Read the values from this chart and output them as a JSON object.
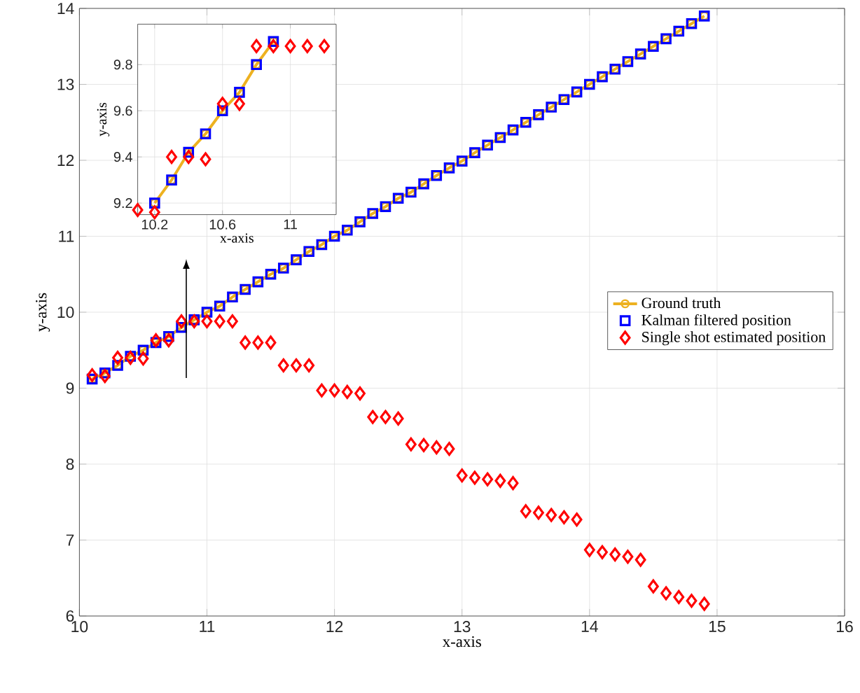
{
  "chart_data": [
    {
      "type": "scatter",
      "xlabel": "x-axis",
      "ylabel": "y-axis",
      "xlim": [
        10,
        16
      ],
      "ylim": [
        6,
        14
      ],
      "xticks": [
        10,
        11,
        12,
        13,
        14,
        15,
        16
      ],
      "yticks": [
        6,
        7,
        8,
        9,
        10,
        11,
        12,
        13,
        14
      ],
      "grid": true,
      "legend": "right",
      "series": [
        {
          "name": "Ground truth",
          "type": "line",
          "marker": "circle",
          "color": "#edb120",
          "x": [
            10.1,
            10.2,
            10.3,
            10.4,
            10.5,
            10.6,
            10.7,
            10.8,
            10.9,
            11.0,
            11.1,
            11.2,
            11.3,
            11.4,
            11.5,
            11.6,
            11.7,
            11.8,
            11.9,
            12.0,
            12.1,
            12.2,
            12.3,
            12.4,
            12.5,
            12.6,
            12.7,
            12.8,
            12.9,
            13.0,
            13.1,
            13.2,
            13.3,
            13.4,
            13.5,
            13.6,
            13.7,
            13.8,
            13.9,
            14.0,
            14.1,
            14.2,
            14.3,
            14.4,
            14.5,
            14.6,
            14.7,
            14.8,
            14.9
          ],
          "values": [
            9.12,
            9.2,
            9.3,
            9.42,
            9.5,
            9.6,
            9.68,
            9.8,
            9.9,
            10.0,
            10.08,
            10.2,
            10.3,
            10.4,
            10.5,
            10.58,
            10.69,
            10.8,
            10.89,
            11.0,
            11.08,
            11.19,
            11.3,
            11.39,
            11.5,
            11.58,
            11.69,
            11.8,
            11.9,
            11.99,
            12.1,
            12.2,
            12.3,
            12.4,
            12.5,
            12.6,
            12.7,
            12.8,
            12.9,
            13.0,
            13.1,
            13.2,
            13.3,
            13.4,
            13.5,
            13.6,
            13.7,
            13.8,
            13.9
          ]
        },
        {
          "name": "Kalman filtered position",
          "marker": "square",
          "color": "#0000ff",
          "x": [
            10.1,
            10.2,
            10.3,
            10.4,
            10.5,
            10.6,
            10.7,
            10.8,
            10.9,
            11.0,
            11.1,
            11.2,
            11.3,
            11.4,
            11.5,
            11.6,
            11.7,
            11.8,
            11.9,
            12.0,
            12.1,
            12.2,
            12.3,
            12.4,
            12.5,
            12.6,
            12.7,
            12.8,
            12.9,
            13.0,
            13.1,
            13.2,
            13.3,
            13.4,
            13.5,
            13.6,
            13.7,
            13.8,
            13.9,
            14.0,
            14.1,
            14.2,
            14.3,
            14.4,
            14.5,
            14.6,
            14.7,
            14.8,
            14.9
          ],
          "values": [
            9.12,
            9.2,
            9.3,
            9.42,
            9.5,
            9.6,
            9.68,
            9.8,
            9.9,
            10.0,
            10.08,
            10.2,
            10.3,
            10.4,
            10.5,
            10.58,
            10.69,
            10.8,
            10.89,
            11.0,
            11.08,
            11.19,
            11.3,
            11.39,
            11.5,
            11.58,
            11.69,
            11.8,
            11.9,
            11.99,
            12.1,
            12.2,
            12.3,
            12.4,
            12.5,
            12.6,
            12.7,
            12.8,
            12.9,
            13.0,
            13.1,
            13.2,
            13.3,
            13.4,
            13.5,
            13.6,
            13.7,
            13.8,
            13.9
          ]
        },
        {
          "name": "Single shot estimated position",
          "marker": "diamond",
          "color": "#ff0000",
          "x": [
            10.1,
            10.2,
            10.3,
            10.4,
            10.5,
            10.6,
            10.7,
            10.8,
            10.9,
            11.0,
            11.1,
            11.2,
            11.3,
            11.4,
            11.5,
            11.6,
            11.7,
            11.8,
            11.9,
            12.0,
            12.1,
            12.2,
            12.3,
            12.4,
            12.5,
            12.6,
            12.7,
            12.8,
            12.9,
            13.0,
            13.1,
            13.2,
            13.3,
            13.4,
            13.5,
            13.6,
            13.7,
            13.8,
            13.9,
            14.0,
            14.1,
            14.2,
            14.3,
            14.4,
            14.5,
            14.6,
            14.7,
            14.8,
            14.9
          ],
          "values": [
            9.17,
            9.16,
            9.4,
            9.4,
            9.39,
            9.63,
            9.63,
            9.88,
            9.88,
            9.88,
            9.88,
            9.88,
            9.6,
            9.6,
            9.6,
            9.3,
            9.3,
            9.3,
            8.97,
            8.97,
            8.95,
            8.93,
            8.62,
            8.62,
            8.6,
            8.26,
            8.25,
            8.22,
            8.2,
            7.85,
            7.82,
            7.8,
            7.78,
            7.75,
            7.38,
            7.36,
            7.33,
            7.3,
            7.27,
            6.87,
            6.84,
            6.81,
            6.78,
            6.74,
            6.39,
            6.3,
            6.25,
            6.2,
            6.16
          ]
        }
      ]
    },
    {
      "type": "scatter",
      "xlabel": "x-axis",
      "ylabel": "y-axis",
      "xlim": [
        10.1,
        11.27
      ],
      "ylim": [
        9.15,
        9.975
      ],
      "xticks": [
        10.2,
        10.6,
        11
      ],
      "yticks": [
        9.2,
        9.4,
        9.6,
        9.8
      ],
      "grid": true,
      "series": [
        {
          "type": "line",
          "marker": "circle",
          "color": "#edb120",
          "x": [
            10.2,
            10.3,
            10.4,
            10.5,
            10.6,
            10.7,
            10.8,
            10.9
          ],
          "values": [
            9.2,
            9.3,
            9.42,
            9.5,
            9.6,
            9.68,
            9.8,
            9.9
          ]
        },
        {
          "marker": "square",
          "color": "#0000ff",
          "x": [
            10.2,
            10.3,
            10.4,
            10.5,
            10.6,
            10.7,
            10.8,
            10.9
          ],
          "values": [
            9.2,
            9.3,
            9.42,
            9.5,
            9.6,
            9.68,
            9.8,
            9.9
          ]
        },
        {
          "marker": "diamond",
          "color": "#ff0000",
          "x": [
            10.1,
            10.2,
            10.3,
            10.4,
            10.5,
            10.6,
            10.7,
            10.8,
            10.9,
            11.0,
            11.1,
            11.2
          ],
          "values": [
            9.17,
            9.16,
            9.4,
            9.4,
            9.39,
            9.63,
            9.63,
            9.88,
            9.88,
            9.88,
            9.88,
            9.88
          ]
        }
      ]
    }
  ]
}
